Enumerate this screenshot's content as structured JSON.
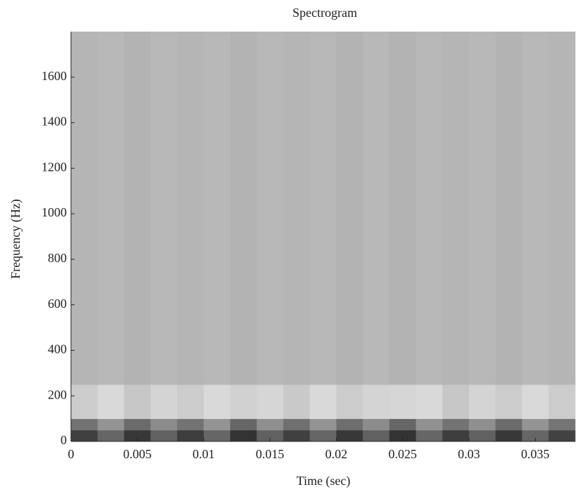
{
  "chart_data": {
    "type": "heatmap",
    "title": "Spectrogram",
    "x_label": "Time (sec)",
    "y_label": "Frequency (Hz)",
    "x_bins": [
      0,
      0.002,
      0.004,
      0.006,
      0.008,
      0.01,
      0.012,
      0.014,
      0.016,
      0.018,
      0.02,
      0.022,
      0.024,
      0.026,
      0.028,
      0.03,
      0.032,
      0.034,
      0.036,
      0.038
    ],
    "y_bins": [
      0,
      50,
      100,
      250,
      1800
    ],
    "z": [
      [
        0.75,
        0.6,
        0.78,
        0.62,
        0.76,
        0.6,
        0.8,
        0.62,
        0.75,
        0.6,
        0.78,
        0.62,
        0.8,
        0.6,
        0.76,
        0.62,
        0.78,
        0.6,
        0.74
      ],
      [
        0.55,
        0.42,
        0.58,
        0.45,
        0.55,
        0.42,
        0.6,
        0.44,
        0.56,
        0.42,
        0.57,
        0.45,
        0.6,
        0.43,
        0.55,
        0.44,
        0.58,
        0.42,
        0.54
      ],
      [
        0.2,
        0.15,
        0.22,
        0.17,
        0.2,
        0.15,
        0.18,
        0.16,
        0.21,
        0.15,
        0.2,
        0.17,
        0.16,
        0.15,
        0.22,
        0.17,
        0.2,
        0.15,
        0.2
      ],
      [
        0.29,
        0.28,
        0.3,
        0.28,
        0.29,
        0.28,
        0.3,
        0.28,
        0.29,
        0.28,
        0.3,
        0.28,
        0.3,
        0.28,
        0.29,
        0.28,
        0.3,
        0.28,
        0.29
      ]
    ],
    "zlim": [
      0,
      1
    ],
    "xlim": [
      0,
      0.038
    ],
    "ylim": [
      0,
      1800
    ],
    "xticks": [
      0,
      0.005,
      0.01,
      0.015,
      0.02,
      0.025,
      0.03,
      0.035
    ],
    "yticks": [
      0,
      200,
      400,
      600,
      800,
      1000,
      1200,
      1400,
      1600
    ]
  }
}
